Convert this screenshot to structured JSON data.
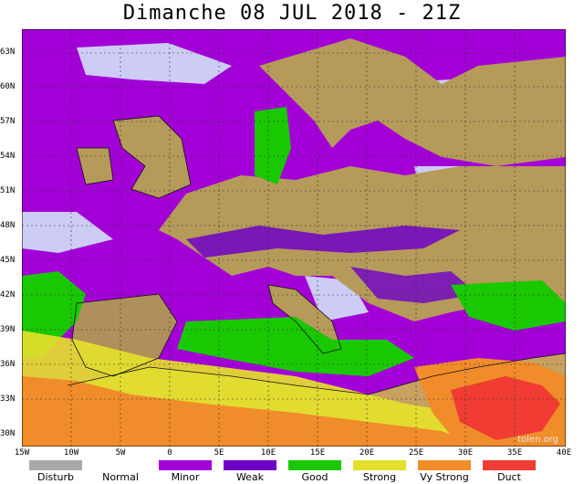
{
  "title": "Dimanche 08 JUL 2018 - 21Z",
  "watermark": "tolen.org",
  "lat_labels": [
    "63N",
    "60N",
    "57N",
    "54N",
    "51N",
    "48N",
    "45N",
    "42N",
    "39N",
    "36N",
    "33N",
    "30N"
  ],
  "lon_labels": [
    "15W",
    "10W",
    "5W",
    "0",
    "5E",
    "10E",
    "15E",
    "20E",
    "25E",
    "30E",
    "35E",
    "40E"
  ],
  "legend": [
    {
      "label": "Disturb",
      "color": "#a9a9a9"
    },
    {
      "label": "Normal",
      "color": "#ffffff"
    },
    {
      "label": "Minor",
      "color": "#a300d8"
    },
    {
      "label": "Weak",
      "color": "#6f00c8"
    },
    {
      "label": "Good",
      "color": "#19c800"
    },
    {
      "label": "Strong",
      "color": "#e4e02c"
    },
    {
      "label": "Vy Strong",
      "color": "#f08c2a"
    },
    {
      "label": "Duct",
      "color": "#f03c32"
    }
  ]
}
